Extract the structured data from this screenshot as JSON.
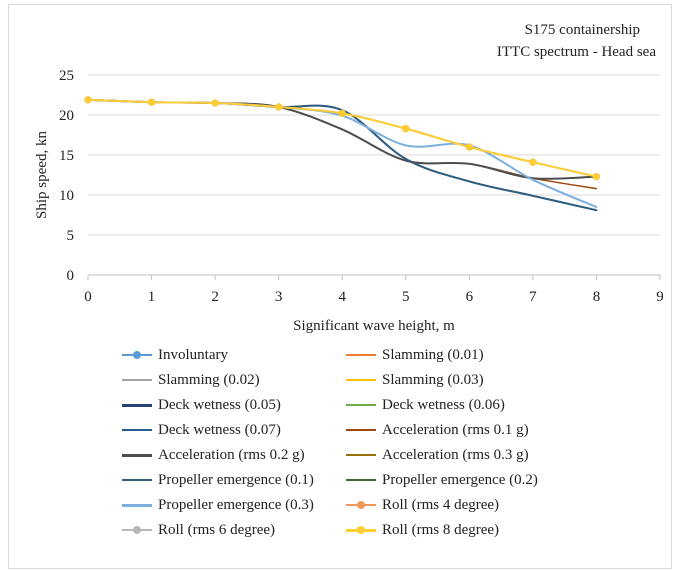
{
  "chart_data": {
    "type": "line",
    "title": "S175 containership",
    "subtitle": "ITTC spectrum - Head sea",
    "xlabel": "Significant wave height, m",
    "ylabel": "Ship speed, kn",
    "xlim": [
      0,
      9
    ],
    "ylim": [
      0,
      25
    ],
    "xticks": [
      "0",
      "1",
      "2",
      "3",
      "4",
      "5",
      "6",
      "7",
      "8",
      "9"
    ],
    "yticks": [
      "0",
      "5",
      "10",
      "15",
      "20",
      "25"
    ],
    "grid": "horizontal",
    "legend_position": "bottom",
    "x": [
      0,
      1,
      2,
      3,
      4,
      5,
      6,
      7,
      8
    ],
    "series": [
      {
        "name": "Involuntary",
        "color": "#5b9bd5",
        "marker": true,
        "width": 1.5,
        "values": [
          21.9,
          21.6,
          21.5,
          21.0,
          20.2,
          18.3,
          16.0,
          14.1,
          12.3
        ]
      },
      {
        "name": "Slamming (0.01)",
        "color": "#ed7d31",
        "marker": false,
        "width": 1.5,
        "values": [
          21.9,
          21.6,
          21.5,
          21.0,
          20.2,
          18.3,
          16.0,
          14.1,
          12.3
        ]
      },
      {
        "name": "Slamming (0.02)",
        "color": "#a5a5a5",
        "marker": false,
        "width": 1.5,
        "values": [
          21.9,
          21.6,
          21.5,
          21.0,
          20.2,
          18.3,
          16.0,
          14.1,
          12.3
        ]
      },
      {
        "name": "Slamming (0.03)",
        "color": "#ffc000",
        "marker": false,
        "width": 1.5,
        "values": [
          21.9,
          21.6,
          21.5,
          21.0,
          20.2,
          18.3,
          16.0,
          14.1,
          12.3
        ]
      },
      {
        "name": "Deck wetness (0.05)",
        "color": "#264478",
        "marker": false,
        "width": 2,
        "values": [
          21.9,
          21.6,
          21.5,
          21.0,
          20.6,
          14.5,
          11.7,
          9.9,
          8.1
        ]
      },
      {
        "name": "Deck wetness (0.06)",
        "color": "#70ad47",
        "marker": false,
        "width": 1.5,
        "values": [
          21.9,
          21.6,
          21.5,
          21.0,
          20.6,
          14.5,
          11.7,
          9.9,
          8.1
        ]
      },
      {
        "name": "Deck wetness (0.07)",
        "color": "#255e91",
        "marker": false,
        "width": 1.5,
        "values": [
          21.9,
          21.6,
          21.5,
          21.0,
          20.6,
          14.5,
          11.7,
          9.9,
          8.1
        ]
      },
      {
        "name": "Acceleration (rms 0.1 g)",
        "color": "#9e480e",
        "marker": false,
        "width": 1.5,
        "values": [
          21.9,
          21.6,
          21.5,
          21.0,
          18.2,
          14.3,
          13.9,
          12.1,
          10.8
        ]
      },
      {
        "name": "Acceleration (rms 0.2 g)",
        "color": "#4e4e4e",
        "marker": false,
        "width": 2,
        "values": [
          21.9,
          21.6,
          21.5,
          21.0,
          18.2,
          14.3,
          13.9,
          12.1,
          12.3
        ]
      },
      {
        "name": "Acceleration (rms 0.3 g)",
        "color": "#997300",
        "marker": false,
        "width": 1.5,
        "values": [
          21.9,
          21.6,
          21.5,
          21.0,
          20.2,
          18.3,
          16.0,
          14.1,
          12.3
        ]
      },
      {
        "name": "Propeller emergence (0.1)",
        "color": "#2e5e7e",
        "marker": false,
        "width": 1.5,
        "values": [
          21.9,
          21.6,
          21.5,
          21.0,
          20.6,
          14.5,
          11.7,
          9.9,
          8.1
        ]
      },
      {
        "name": "Propeller emergence (0.2)",
        "color": "#43682b",
        "marker": false,
        "width": 1.5,
        "values": [
          21.9,
          21.6,
          21.5,
          21.0,
          20.2,
          18.3,
          16.0,
          14.1,
          12.3
        ]
      },
      {
        "name": "Propeller emergence (0.3)",
        "color": "#7cafdd",
        "marker": false,
        "width": 2,
        "values": [
          21.9,
          21.6,
          21.5,
          21.0,
          19.9,
          16.2,
          16.2,
          11.9,
          8.5
        ]
      },
      {
        "name": "Roll (rms 4 degree)",
        "color": "#f1975a",
        "marker": true,
        "width": 1.5,
        "values": [
          21.9,
          21.6,
          21.5,
          21.0,
          20.2,
          18.3,
          16.0,
          14.1,
          12.3
        ]
      },
      {
        "name": "Roll (rms 6 degree)",
        "color": "#b7b7b7",
        "marker": true,
        "width": 1.5,
        "values": [
          21.9,
          21.6,
          21.5,
          21.0,
          20.2,
          18.3,
          16.0,
          14.1,
          12.3
        ]
      },
      {
        "name": "Roll (rms 8 degree)",
        "color": "#ffcd33",
        "marker": true,
        "width": 2,
        "values": [
          21.9,
          21.6,
          21.5,
          21.0,
          20.2,
          18.3,
          16.0,
          14.1,
          12.3
        ]
      }
    ]
  }
}
